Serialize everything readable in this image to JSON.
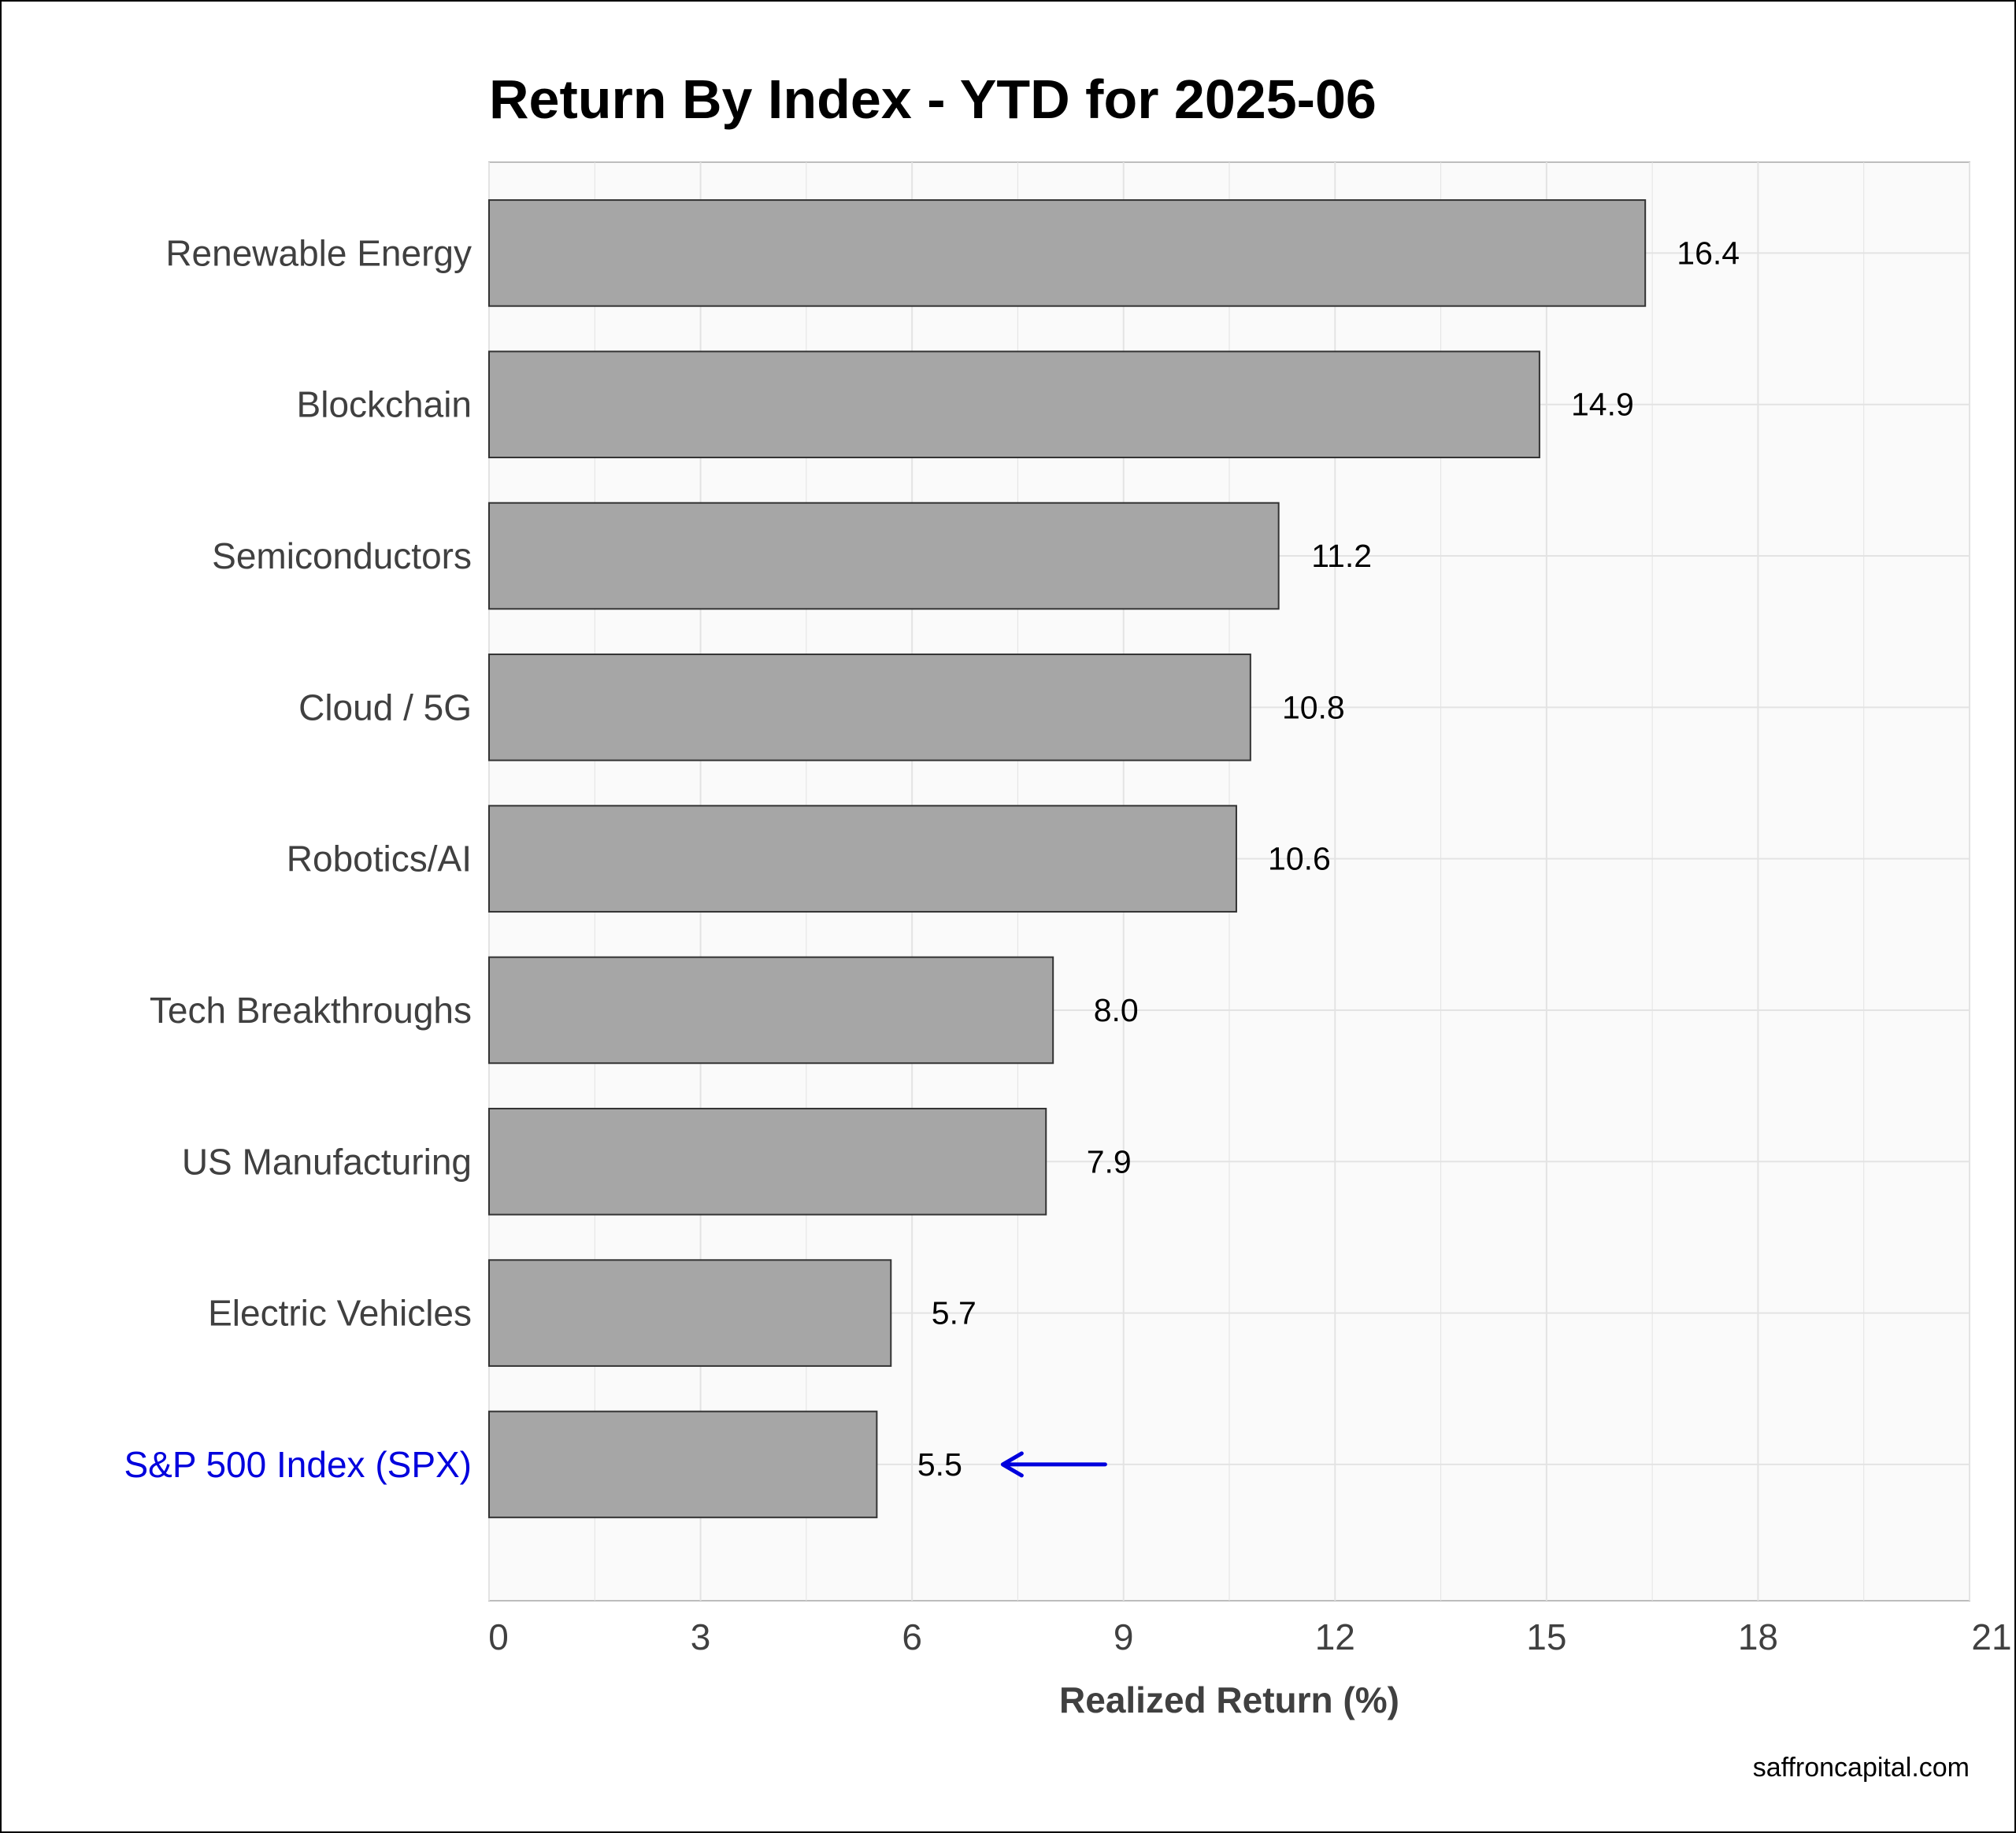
{
  "chart_data": {
    "type": "bar",
    "orientation": "horizontal",
    "title": "Return By Index - YTD for 2025-06",
    "xlabel": "Realized Return (%)",
    "ylabel": "",
    "xlim": [
      0,
      21
    ],
    "xticks": [
      0,
      3,
      6,
      9,
      12,
      15,
      18,
      21
    ],
    "grid": true,
    "categories": [
      "Renewable Energy",
      "Blockchain",
      "Semiconductors",
      "Cloud / 5G",
      "Robotics/AI",
      "Tech Breakthroughs",
      "US Manufacturing",
      "Electric Vehicles",
      "S&P 500 Index (SPX)"
    ],
    "values": [
      16.4,
      14.9,
      11.2,
      10.8,
      10.6,
      8.0,
      7.9,
      5.7,
      5.5
    ],
    "value_labels": [
      "16.4",
      "14.9",
      "11.2",
      "10.8",
      "10.6",
      "8.0",
      "7.9",
      "5.7",
      "5.5"
    ],
    "highlight": {
      "category": "S&P 500 Index (SPX)",
      "color": "#0000dd",
      "arrow": true
    },
    "colors": {
      "bar_fill": "#a6a6a6",
      "bar_stroke": "#333333",
      "panel_bg": "#fafafa",
      "grid": "#e3e3e3",
      "highlight": "#0000dd"
    }
  },
  "footer": {
    "credit": "saffroncapital.com"
  }
}
